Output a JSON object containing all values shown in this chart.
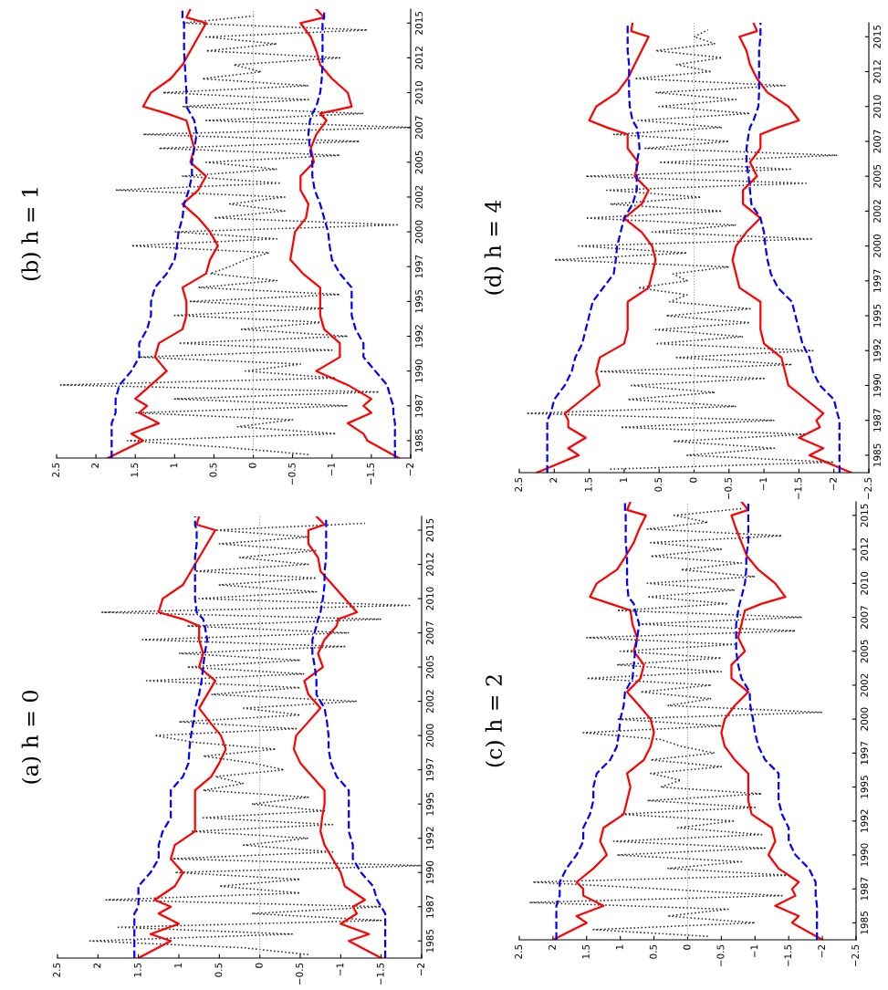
{
  "chart_data": [
    {
      "type": "line",
      "orientation": "horizontal",
      "title": "(a) h = 0",
      "x": [
        1983.75,
        1985,
        1985.5,
        1986.25,
        1987,
        1987.5,
        1988,
        1989,
        1990,
        1991,
        1992,
        1993,
        1994,
        1995,
        1996,
        1997,
        1998,
        1999,
        2000,
        2001,
        2002,
        2003,
        2004,
        2005,
        2006,
        2007,
        2008,
        2008.5,
        2009,
        2010,
        2011,
        2012,
        2013,
        2014,
        2015,
        2015.4,
        2016
      ],
      "ylim": [
        1983.75,
        2016
      ],
      "yticks": [
        1985,
        {
          "value": 1987.5,
          "label": "1987"
        },
        1990,
        {
          "value": 1992.5,
          "label": "1992"
        },
        1995,
        {
          "value": 1997.5,
          "label": "1997"
        },
        2000,
        {
          "value": 2002.5,
          "label": "2002"
        },
        2005,
        {
          "value": 2007.5,
          "label": "2007"
        },
        2010,
        {
          "value": 2012.5,
          "label": "2012"
        },
        2015
      ],
      "xlim": [
        2.5,
        -2
      ],
      "xticks": [
        -2,
        -1.5,
        -1,
        -0.5,
        0,
        0.5,
        1,
        1.5,
        2,
        2.5
      ],
      "ref_lines": [
        {
          "axis": "x",
          "value": 0,
          "color": "#999999",
          "line_style": "dotted"
        }
      ],
      "series": [
        {
          "color": "#222222",
          "line_style": "dotted",
          "x": [
            1984,
            1984.5,
            1985,
            1985.5,
            1986,
            1986.5,
            1987,
            1987.5,
            1988,
            1988.5,
            1989,
            1989.5,
            1990,
            1990.5,
            1991,
            1991.5,
            1992,
            1992.5,
            1993,
            1993.5,
            1994,
            1994.5,
            1995,
            1995.5,
            1996,
            1996.5,
            1997,
            1997.5,
            1998,
            1998.5,
            1999,
            1999.5,
            2000,
            2000.5,
            2001,
            2001.5,
            2002,
            2002.5,
            2003,
            2003.5,
            2004,
            2004.5,
            2005,
            2005.5,
            2006,
            2006.5,
            2007,
            2007.5,
            2008,
            2008.5,
            2009,
            2009.5,
            2010,
            2010.5,
            2011,
            2011.5,
            2012,
            2012.5,
            2013,
            2013.5,
            2014,
            2014.5,
            2015,
            2015.5
          ],
          "values": [
            -0.6,
            0.2,
            2.1,
            -0.4,
            1.75,
            -1.5,
            0.1,
            -1.5,
            1.9,
            -0.5,
            0.5,
            -0.5,
            1.05,
            -2.0,
            1.1,
            -0.9,
            0.2,
            -0.6,
            0.85,
            -0.9,
            0.7,
            -0.8,
            0.1,
            -0.6,
            0.7,
            0.2,
            0.55,
            -0.3,
            0.1,
            0.7,
            -0.2,
            0.8,
            1.3,
            -0.45,
            1.0,
            -0.5,
            0.2,
            -1.2,
            0.6,
            -0.5,
            1.4,
            -0.55,
            0.9,
            -0.5,
            1.0,
            -1.05,
            1.45,
            -1.1,
            0.9,
            -1.5,
            1.95,
            -1.85,
            0.75,
            -0.7,
            0.5,
            -0.7,
            0.8,
            -0.6,
            0.25,
            -0.7,
            0.5,
            -0.6,
            0.55,
            -1.3
          ]
        },
        {
          "color": "#ff0000",
          "line_style": "solid",
          "values": [
            1.5,
            1.1,
            1.35,
            1.0,
            1.25,
            1.1,
            1.3,
            1.05,
            0.95,
            1.1,
            1.05,
            0.8,
            0.8,
            0.8,
            0.8,
            0.6,
            0.5,
            0.42,
            0.48,
            0.62,
            0.75,
            0.65,
            0.55,
            0.75,
            0.7,
            0.75,
            0.75,
            0.95,
            1.25,
            1.2,
            0.95,
            0.85,
            0.75,
            0.65,
            0.55,
            0.78,
            0.75
          ]
        },
        {
          "color": "#ff0000",
          "line_style": "solid",
          "values": [
            -1.5,
            -1.1,
            -1.35,
            -1.0,
            -1.2,
            -1.15,
            -1.3,
            -1.05,
            -1.0,
            -0.9,
            -0.8,
            -0.75,
            -0.77,
            -0.8,
            -0.8,
            -0.65,
            -0.5,
            -0.42,
            -0.45,
            -0.6,
            -0.75,
            -0.6,
            -0.55,
            -0.78,
            -0.72,
            -0.8,
            -0.95,
            -0.97,
            -1.2,
            -1.05,
            -0.9,
            -0.75,
            -0.72,
            -0.6,
            -0.6,
            -0.8,
            -0.7
          ]
        },
        {
          "color": "#0000ff",
          "line_style": "dashed",
          "values": [
            1.55,
            1.55,
            1.55,
            1.55,
            1.55,
            1.5,
            1.5,
            1.5,
            1.35,
            1.25,
            1.25,
            1.2,
            1.1,
            1.1,
            1.1,
            0.95,
            0.88,
            0.87,
            0.85,
            0.82,
            0.8,
            0.75,
            0.72,
            0.7,
            0.68,
            0.65,
            0.68,
            0.7,
            0.78,
            0.8,
            0.8,
            0.8,
            0.8,
            0.78,
            0.78,
            0.8,
            0.8
          ]
        },
        {
          "color": "#0000ff",
          "line_style": "dashed",
          "values": [
            -1.55,
            -1.55,
            -1.55,
            -1.55,
            -1.55,
            -1.5,
            -1.45,
            -1.4,
            -1.25,
            -1.15,
            -1.15,
            -1.1,
            -1.1,
            -1.1,
            -1.1,
            -0.95,
            -0.88,
            -0.85,
            -0.85,
            -0.83,
            -0.8,
            -0.7,
            -0.7,
            -0.68,
            -0.65,
            -0.65,
            -0.7,
            -0.72,
            -0.75,
            -0.78,
            -0.8,
            -0.8,
            -0.82,
            -0.82,
            -0.82,
            -0.82,
            -0.82
          ]
        }
      ]
    },
    {
      "type": "line",
      "orientation": "horizontal",
      "title": "(b) h = 1",
      "x": [
        1983.75,
        1985,
        1985.5,
        1986.25,
        1987,
        1987.5,
        1988,
        1989,
        1990,
        1991,
        1992,
        1993,
        1994,
        1995,
        1996,
        1997,
        1998,
        1999,
        2000,
        2001,
        2002,
        2003,
        2004,
        2005,
        2006,
        2007,
        2008,
        2008.5,
        2009,
        2010,
        2011,
        2012,
        2013,
        2014,
        2015,
        2015.4,
        2016
      ],
      "ylim": [
        1983.75,
        2016
      ],
      "yticks": [
        1985,
        {
          "value": 1987.5,
          "label": "1987"
        },
        1990,
        {
          "value": 1992.5,
          "label": "1992"
        },
        1995,
        {
          "value": 1997.5,
          "label": "1997"
        },
        2000,
        {
          "value": 2002.5,
          "label": "2002"
        },
        2005,
        {
          "value": 2007.5,
          "label": "2007"
        },
        2010,
        {
          "value": 2012.5,
          "label": "2012"
        },
        2015
      ],
      "xlim": [
        2.5,
        -2
      ],
      "xticks": [
        -2,
        -1.5,
        -1,
        -0.5,
        0,
        0.5,
        1,
        1.5,
        2,
        2.5
      ],
      "ref_lines": [
        {
          "axis": "x",
          "value": 0,
          "color": "#999999",
          "line_style": "dotted"
        }
      ],
      "series": [
        {
          "color": "#222222",
          "line_style": "dotted",
          "x": [
            1984,
            1984.5,
            1985,
            1985.5,
            1986,
            1986.5,
            1987,
            1987.5,
            1988,
            1988.5,
            1989,
            1989.5,
            1990,
            1990.5,
            1991,
            1991.5,
            1992,
            1992.5,
            1993,
            1993.5,
            1994,
            1994.5,
            1995,
            1995.5,
            1996,
            1996.5,
            1997,
            1997.5,
            1998,
            1998.5,
            1999,
            1999.5,
            2000,
            2000.5,
            2001,
            2001.5,
            2002,
            2002.5,
            2003,
            2003.5,
            2004,
            2004.5,
            2005,
            2005.5,
            2006,
            2006.5,
            2007,
            2007.5,
            2008,
            2008.5,
            2009,
            2009.5,
            2010,
            2010.5,
            2011,
            2011.5,
            2012,
            2012.5,
            2013,
            2013.5,
            2014,
            2014.5,
            2015,
            2015.5
          ],
          "values": [
            -0.7,
            0.3,
            1.6,
            -1.05,
            0.2,
            -0.5,
            1.5,
            -1.2,
            1.0,
            -1.6,
            2.45,
            -1.05,
            0.1,
            -0.6,
            1.45,
            -1.0,
            0.95,
            -1.2,
            0.15,
            -0.9,
            1.0,
            -0.9,
            0.8,
            -1.1,
            0.7,
            -0.3,
            0.55,
            0.3,
            0.1,
            -0.2,
            1.55,
            -0.3,
            1.0,
            -1.85,
            0.5,
            -0.4,
            0.3,
            -0.4,
            1.75,
            -0.35,
            0.9,
            -0.3,
            0.6,
            -1.1,
            1.2,
            -1.35,
            1.4,
            -2.0,
            0.6,
            -1.4,
            0.9,
            -0.7,
            1.15,
            -0.7,
            0.65,
            -0.1,
            0.25,
            -1.1,
            0.6,
            -0.3,
            0.6,
            -1.45,
            0.9,
            0.0
          ]
        },
        {
          "color": "#ff0000",
          "line_style": "solid",
          "values": [
            1.85,
            1.4,
            1.55,
            1.2,
            1.45,
            1.35,
            1.5,
            1.3,
            1.1,
            1.25,
            1.2,
            0.9,
            0.85,
            0.85,
            0.9,
            0.6,
            0.55,
            0.45,
            0.55,
            0.7,
            0.9,
            0.7,
            0.6,
            0.8,
            0.75,
            0.8,
            0.85,
            1.1,
            1.4,
            1.3,
            1.05,
            0.9,
            0.8,
            0.7,
            0.6,
            0.85,
            0.8
          ]
        },
        {
          "color": "#ff0000",
          "line_style": "solid",
          "values": [
            -1.85,
            -1.45,
            -1.4,
            -1.2,
            -1.5,
            -1.4,
            -1.5,
            -1.2,
            -0.8,
            -1.1,
            -1.1,
            -0.9,
            -0.85,
            -0.85,
            -0.85,
            -0.63,
            -0.47,
            -0.5,
            -0.53,
            -0.67,
            -0.7,
            -0.6,
            -0.6,
            -0.77,
            -0.73,
            -0.8,
            -0.93,
            -0.85,
            -1.25,
            -1.2,
            -1.0,
            -0.85,
            -0.8,
            -0.73,
            -0.6,
            -0.9,
            -0.8
          ]
        },
        {
          "color": "#0000ff",
          "line_style": "dashed",
          "values": [
            1.8,
            1.8,
            1.8,
            1.8,
            1.75,
            1.75,
            1.75,
            1.7,
            1.55,
            1.45,
            1.45,
            1.35,
            1.3,
            1.3,
            1.25,
            1.1,
            1.0,
            0.97,
            0.95,
            0.9,
            0.88,
            0.82,
            0.78,
            0.78,
            0.75,
            0.72,
            0.75,
            0.8,
            0.85,
            0.85,
            0.86,
            0.87,
            0.88,
            0.88,
            0.88,
            0.9,
            0.9
          ]
        },
        {
          "color": "#0000ff",
          "line_style": "dashed",
          "values": [
            -1.8,
            -1.8,
            -1.8,
            -1.8,
            -1.78,
            -1.78,
            -1.75,
            -1.7,
            -1.55,
            -1.4,
            -1.4,
            -1.3,
            -1.25,
            -1.25,
            -1.25,
            -1.1,
            -1.0,
            -0.97,
            -0.95,
            -0.9,
            -0.85,
            -0.78,
            -0.75,
            -0.75,
            -0.72,
            -0.7,
            -0.72,
            -0.75,
            -0.8,
            -0.85,
            -0.87,
            -0.88,
            -0.88,
            -0.88,
            -0.88,
            -0.9,
            -0.9
          ]
        }
      ]
    },
    {
      "type": "line",
      "orientation": "horizontal",
      "title": "(c) h = 2",
      "x": [
        1983.75,
        1985,
        1985.5,
        1986.25,
        1987,
        1987.5,
        1988,
        1989,
        1990,
        1991,
        1992,
        1993,
        1994,
        1995,
        1996,
        1997,
        1998,
        1999,
        2000,
        2001,
        2002,
        2003,
        2004,
        2005,
        2006,
        2007,
        2008,
        2008.5,
        2009,
        2010,
        2011,
        2012,
        2013,
        2014,
        2015,
        2015.4,
        2016
      ],
      "ylim": [
        1983.75,
        2016
      ],
      "yticks": [
        1985,
        {
          "value": 1987.5,
          "label": "1987"
        },
        1990,
        {
          "value": 1992.5,
          "label": "1992"
        },
        1995,
        {
          "value": 1997.5,
          "label": "1997"
        },
        2000,
        {
          "value": 2002.5,
          "label": "2002"
        },
        2005,
        {
          "value": 2007.5,
          "label": "2007"
        },
        2010,
        {
          "value": 2012.5,
          "label": "2012"
        },
        2015
      ],
      "xlim": [
        2.5,
        -2.5
      ],
      "xticks": [
        -2.5,
        -2,
        -1.5,
        -1,
        -0.5,
        0,
        0.5,
        1,
        1.5,
        2,
        2.5
      ],
      "ref_lines": [
        {
          "axis": "x",
          "value": 0,
          "color": "#999999",
          "line_style": "dotted"
        }
      ],
      "series": [
        {
          "color": "#222222",
          "line_style": "dotted",
          "x": [
            1984,
            1984.5,
            1985,
            1985.5,
            1986,
            1986.5,
            1987,
            1987.5,
            1988,
            1988.5,
            1989,
            1989.5,
            1990,
            1990.5,
            1991,
            1991.5,
            1992,
            1992.5,
            1993,
            1993.5,
            1994,
            1994.5,
            1995,
            1995.5,
            1996,
            1996.5,
            1997,
            1997.5,
            1998,
            1998.5,
            1999,
            1999.5,
            2000,
            2000.5,
            2001,
            2001.5,
            2002,
            2002.5,
            2003,
            2003.5,
            2004,
            2004.5,
            2005,
            2005.5,
            2006,
            2006.5,
            2007,
            2007.5,
            2008,
            2008.5,
            2009,
            2009.5,
            2010,
            2010.5,
            2011,
            2011.5,
            2012,
            2012.5,
            2013,
            2013.5,
            2014,
            2014.5,
            2015,
            2015.5
          ],
          "values": [
            -0.3,
            1.4,
            -1.0,
            0.3,
            -0.6,
            2.35,
            -1.4,
            0.4,
            2.3,
            -1.5,
            0.3,
            -0.8,
            1.05,
            -1.15,
            1.1,
            -1.1,
            0.15,
            -0.7,
            1.0,
            -1.0,
            0.6,
            -1.1,
            0.4,
            0.1,
            0.55,
            -0.5,
            0.55,
            -0.4,
            0.1,
            0.4,
            1.55,
            -0.5,
            1.05,
            -2.0,
            0.3,
            -0.35,
            0.7,
            -0.35,
            1.5,
            -0.5,
            1.05,
            -0.5,
            1.0,
            -0.7,
            1.5,
            -1.6,
            0.75,
            -1.7,
            1.05,
            -0.6,
            0.6,
            -0.7,
            0.6,
            -1.0,
            0.1,
            -0.8,
            0.55,
            -0.5,
            0.55,
            -1.4,
            0.6,
            -0.3,
            0.2,
            -0.8
          ]
        },
        {
          "color": "#ff0000",
          "line_style": "solid",
          "values": [
            2.0,
            1.5,
            1.65,
            1.25,
            1.55,
            1.55,
            1.65,
            1.4,
            1.2,
            1.3,
            1.25,
            0.95,
            0.9,
            0.85,
            0.9,
            0.65,
            0.55,
            0.5,
            0.55,
            0.72,
            0.9,
            0.7,
            0.65,
            0.8,
            0.75,
            0.82,
            0.85,
            1.15,
            1.45,
            1.35,
            1.05,
            0.92,
            0.8,
            0.72,
            0.62,
            0.9,
            0.85
          ]
        },
        {
          "color": "#ff0000",
          "line_style": "solid",
          "values": [
            -2.0,
            -1.55,
            -1.65,
            -1.3,
            -1.6,
            -1.55,
            -1.65,
            -1.35,
            -1.2,
            -1.3,
            -1.25,
            -0.95,
            -0.9,
            -0.9,
            -0.9,
            -0.7,
            -0.55,
            -0.5,
            -0.55,
            -0.7,
            -0.9,
            -0.65,
            -0.65,
            -0.85,
            -0.75,
            -0.8,
            -0.85,
            -1.1,
            -1.45,
            -1.3,
            -1.05,
            -0.88,
            -0.8,
            -0.72,
            -0.65,
            -0.9,
            -0.8
          ]
        },
        {
          "color": "#0000ff",
          "line_style": "dashed",
          "values": [
            1.95,
            1.95,
            1.95,
            1.95,
            1.9,
            1.9,
            1.9,
            1.8,
            1.65,
            1.55,
            1.55,
            1.45,
            1.4,
            1.4,
            1.35,
            1.15,
            1.05,
            1.02,
            1.0,
            0.95,
            0.93,
            0.82,
            0.8,
            0.78,
            0.75,
            0.72,
            0.78,
            0.8,
            0.88,
            0.9,
            0.9,
            0.9,
            0.92,
            0.92,
            0.92,
            0.93,
            0.93
          ]
        },
        {
          "color": "#0000ff",
          "line_style": "dashed",
          "values": [
            -1.92,
            -1.92,
            -1.92,
            -1.92,
            -1.9,
            -1.9,
            -1.9,
            -1.8,
            -1.6,
            -1.5,
            -1.5,
            -1.4,
            -1.35,
            -1.35,
            -1.35,
            -1.15,
            -1.05,
            -1.0,
            -0.97,
            -0.93,
            -0.92,
            -0.8,
            -0.75,
            -0.72,
            -0.72,
            -0.72,
            -0.75,
            -0.77,
            -0.8,
            -0.85,
            -0.87,
            -0.87,
            -0.9,
            -0.9,
            -0.9,
            -0.9,
            -0.9
          ]
        }
      ]
    },
    {
      "type": "line",
      "orientation": "horizontal",
      "title": "(d) h = 4",
      "x": [
        1983.75,
        1985,
        1985.5,
        1986.25,
        1987,
        1987.5,
        1988,
        1989,
        1990,
        1991,
        1992,
        1993,
        1994,
        1995,
        1996,
        1997,
        1998,
        1999,
        2000,
        2001,
        2002,
        2003,
        2004,
        2005,
        2006,
        2007,
        2008,
        2008.5,
        2009,
        2010,
        2011,
        2012,
        2013,
        2014,
        2015,
        2015.4,
        2016
      ],
      "ylim": [
        1983.75,
        2016
      ],
      "yticks": [
        1985,
        {
          "value": 1987.5,
          "label": "1987"
        },
        1990,
        {
          "value": 1992.5,
          "label": "1992"
        },
        1995,
        {
          "value": 1997.5,
          "label": "1997"
        },
        2000,
        {
          "value": 2002.5,
          "label": "2002"
        },
        2005,
        {
          "value": 2007.5,
          "label": "2007"
        },
        2010,
        {
          "value": 2012.5,
          "label": "2012"
        },
        2015
      ],
      "xlim": [
        2.5,
        -2.5
      ],
      "xticks": [
        -2.5,
        -2,
        -1.5,
        -1,
        -0.5,
        0,
        0.5,
        1,
        1.5,
        2,
        2.5
      ],
      "ref_lines": [
        {
          "axis": "x",
          "value": 0,
          "color": "#999999",
          "line_style": "dotted"
        }
      ],
      "series": [
        {
          "color": "#222222",
          "line_style": "dotted",
          "x": [
            1984,
            1984.5,
            1985,
            1985.5,
            1986,
            1986.5,
            1987,
            1987.5,
            1988,
            1988.5,
            1989,
            1989.5,
            1990,
            1990.5,
            1991,
            1991.5,
            1992,
            1992.5,
            1993,
            1993.5,
            1994,
            1994.5,
            1995,
            1995.5,
            1996,
            1996.5,
            1997,
            1997.5,
            1998,
            1998.5,
            1999,
            1999.5,
            2000,
            2000.5,
            2001,
            2001.5,
            2002,
            2002.5,
            2003,
            2003.5,
            2004,
            2004.5,
            2005,
            2005.5,
            2006,
            2006.5,
            2007,
            2007.5,
            2008,
            2008.5,
            2009,
            2009.5,
            2010,
            2010.5,
            2011,
            2011.5,
            2012,
            2012.5,
            2013,
            2013.5,
            2014,
            2014.5,
            2015,
            2015.5
          ],
          "values": [
            1.2,
            -2.0,
            0.1,
            -1.15,
            0.3,
            -1.6,
            1.05,
            -1.15,
            2.4,
            -0.6,
            0.95,
            -0.3,
            0.9,
            -1.0,
            1.35,
            -1.4,
            0.25,
            -1.7,
            0.55,
            -0.7,
            0.55,
            -0.8,
            0.4,
            -0.8,
            0.35,
            0.1,
            0.8,
            0.1,
            0.3,
            -0.5,
            2.0,
            0.1,
            1.65,
            -1.7,
            0.6,
            -0.6,
            1.55,
            -0.4,
            1.2,
            -0.1,
            1.25,
            -1.6,
            1.55,
            -1.4,
            0.5,
            -2.05,
            0.7,
            -0.5,
            1.15,
            -0.4,
            0.8,
            -0.8,
            0.5,
            -0.6,
            0.55,
            -1.3,
            0.85,
            -0.25,
            0.25,
            -0.4,
            0.55,
            -0.3,
            0.0,
            -0.2
          ]
        },
        {
          "color": "#ff0000",
          "line_style": "solid",
          "values": [
            2.25,
            1.65,
            1.8,
            1.55,
            1.8,
            1.8,
            1.85,
            1.6,
            1.35,
            1.4,
            1.35,
            1.0,
            0.95,
            0.95,
            0.95,
            0.65,
            0.6,
            0.55,
            0.6,
            0.75,
            1.0,
            0.75,
            0.65,
            0.85,
            0.8,
            0.95,
            0.95,
            1.25,
            1.5,
            1.4,
            1.1,
            0.95,
            0.85,
            0.75,
            0.65,
            0.9,
            0.88
          ]
        },
        {
          "color": "#ff0000",
          "line_style": "solid",
          "values": [
            -2.25,
            -1.65,
            -1.85,
            -1.5,
            -1.8,
            -1.75,
            -1.85,
            -1.6,
            -1.35,
            -1.3,
            -1.25,
            -1.0,
            -0.95,
            -0.95,
            -0.95,
            -0.65,
            -0.6,
            -0.55,
            -0.6,
            -0.75,
            -0.95,
            -0.7,
            -0.7,
            -0.9,
            -0.8,
            -0.95,
            -0.95,
            -1.2,
            -1.5,
            -1.35,
            -1.05,
            -0.9,
            -0.8,
            -0.75,
            -0.65,
            -0.9,
            -0.85
          ]
        },
        {
          "color": "#0000ff",
          "line_style": "dashed",
          "values": [
            2.1,
            2.1,
            2.1,
            2.1,
            2.1,
            2.1,
            2.05,
            2.0,
            1.85,
            1.75,
            1.7,
            1.6,
            1.55,
            1.5,
            1.45,
            1.3,
            1.15,
            1.12,
            1.1,
            1.05,
            1.0,
            0.88,
            0.82,
            0.82,
            0.82,
            0.78,
            0.8,
            0.82,
            0.88,
            0.92,
            0.93,
            0.93,
            0.93,
            0.95,
            0.95,
            0.95,
            0.95
          ]
        },
        {
          "color": "#0000ff",
          "line_style": "dashed",
          "values": [
            -2.08,
            -2.08,
            -2.08,
            -2.08,
            -2.08,
            -2.08,
            -2.05,
            -2.0,
            -1.8,
            -1.7,
            -1.65,
            -1.55,
            -1.5,
            -1.45,
            -1.4,
            -1.2,
            -1.1,
            -1.05,
            -1.02,
            -1.0,
            -0.95,
            -0.82,
            -0.8,
            -0.78,
            -0.75,
            -0.75,
            -0.78,
            -0.8,
            -0.85,
            -0.92,
            -0.93,
            -0.93,
            -0.93,
            -0.93,
            -0.95,
            -0.95,
            -0.95
          ]
        }
      ]
    }
  ]
}
